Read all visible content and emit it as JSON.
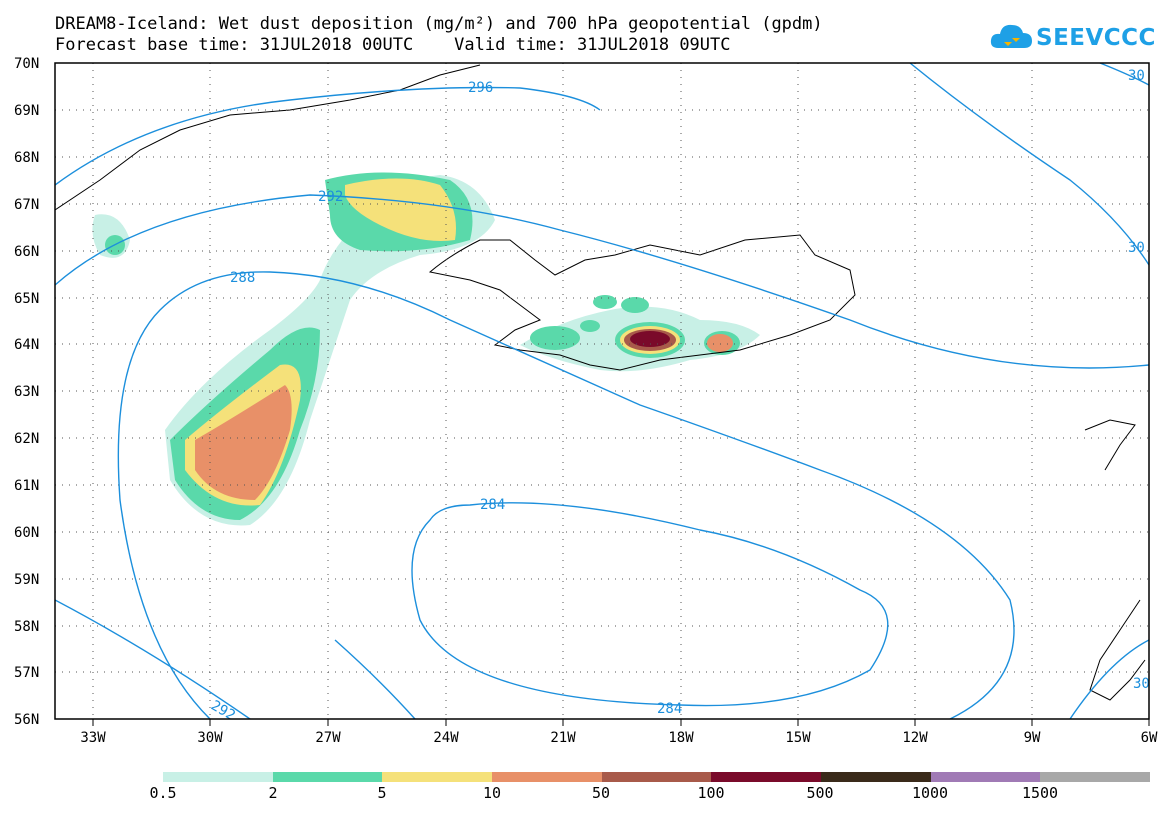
{
  "title_line1": "DREAM8-Iceland: Wet dust deposition (mg/m²) and 700 hPa geopotential (gpdm)",
  "title_line2": "Forecast base time: 31JUL2018 00UTC    Valid time: 31JUL2018 09UTC",
  "logo": {
    "text": "SEEVCCC",
    "icon": "cloud-logo-icon",
    "color": "#1ea0e6"
  },
  "lat_labels": [
    "70N",
    "69N",
    "68N",
    "67N",
    "66N",
    "65N",
    "64N",
    "63N",
    "62N",
    "61N",
    "60N",
    "59N",
    "58N",
    "57N",
    "56N"
  ],
  "lon_labels": [
    "33W",
    "30W",
    "27W",
    "24W",
    "21W",
    "18W",
    "15W",
    "12W",
    "9W",
    "6W"
  ],
  "contour_labels": [
    "296",
    "292",
    "288",
    "284",
    "284",
    "292",
    "30",
    "30",
    "30"
  ],
  "colorbar": {
    "colors": [
      "#c8f0e6",
      "#5ad9aa",
      "#f5e17a",
      "#e89068",
      "#a85a4a",
      "#7a0a2a",
      "#3a2a1a",
      "#a07ab5",
      "#a8a8a8"
    ],
    "labels": [
      "0.5",
      "2",
      "5",
      "10",
      "50",
      "100",
      "500",
      "1000",
      "1500"
    ]
  },
  "contour_color": "#1c8fdc"
}
